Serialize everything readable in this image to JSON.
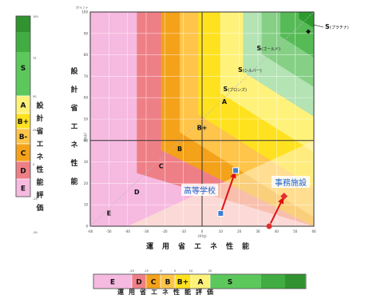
{
  "left_scale": {
    "title": "設計省エネ性能評価",
    "tick_labels": [
      "100",
      "75",
      "50",
      "25",
      "0",
      "-25",
      "-50"
    ],
    "bands": [
      {
        "label": "S",
        "color": "#5cc85c"
      },
      {
        "label": "A",
        "color": "#fff27a"
      },
      {
        "label": "B+",
        "color": "#ffe21f"
      },
      {
        "label": "B-",
        "color": "#ffc44a"
      },
      {
        "label": "C",
        "color": "#f4a21a"
      },
      {
        "label": "D",
        "color": "#ef7f86"
      },
      {
        "label": "E",
        "color": "#f6b9e0"
      }
    ]
  },
  "bottom_scale": {
    "title": "運用省エネ性能評価",
    "tick_labels": [
      "-25",
      "-15",
      "-5",
      "0",
      "10",
      "20"
    ],
    "bands": [
      {
        "label": "E",
        "color": "#f6b9e0"
      },
      {
        "label": "D",
        "color": "#ef7f86"
      },
      {
        "label": "C",
        "color": "#f4a21a"
      },
      {
        "label": "B",
        "color": "#ffc44a"
      },
      {
        "label": "B+",
        "color": "#ffe21f"
      },
      {
        "label": "A",
        "color": "#fff27a"
      },
      {
        "label": "S",
        "color": "#5cc85c"
      }
    ]
  },
  "chart_data": {
    "type": "scatter",
    "title": "",
    "xlabel": "運用省エネ性能",
    "ylabel": "設計省エネ性能",
    "x_unit": "(平均)",
    "y_unit": "(平均)",
    "y_top_unit": "ポイント",
    "xlim": [
      -60,
      60
    ],
    "ylim": [
      0,
      100
    ],
    "x_ticks": [
      -60,
      -50,
      -40,
      -30,
      -20,
      -10,
      0,
      10,
      20,
      30,
      40,
      50,
      60
    ],
    "y_ticks": [
      0,
      10,
      20,
      30,
      40,
      50,
      60,
      70,
      80,
      90,
      100
    ],
    "grid": true,
    "zones": [
      {
        "label": "S(プラチナ)",
        "x": 60,
        "y": 100,
        "color": "#2f9a2f"
      },
      {
        "label": "S(ゴールド)",
        "x": 42,
        "y": 82,
        "color": "#56bb56"
      },
      {
        "label": "S(シルバー)",
        "x": 32,
        "y": 72,
        "color": "#86d086"
      },
      {
        "label": "S(ブロンズ)",
        "x": 24,
        "y": 63,
        "color": "#b4e3b4"
      },
      {
        "label": "A",
        "x": 12,
        "y": 57,
        "color": "#fff27a"
      },
      {
        "label": "B+",
        "x": 0,
        "y": 45,
        "color": "#ffe21f"
      },
      {
        "label": "B",
        "x": -12,
        "y": 35,
        "color": "#ffc44a"
      },
      {
        "label": "C",
        "x": -22,
        "y": 27,
        "color": "#f4a21a"
      },
      {
        "label": "D",
        "x": -35,
        "y": 15,
        "color": "#ef7f86"
      },
      {
        "label": "E",
        "x": -50,
        "y": 5,
        "color": "#f6b9e0"
      }
    ],
    "points": [
      {
        "label": "高等学校",
        "x": 18,
        "y": 26,
        "color": "#3a7fd5",
        "marker": "square"
      },
      {
        "label": "高等学校",
        "x": 10,
        "y": 6,
        "color": "#3a7fd5",
        "marker": "square"
      },
      {
        "label": "事務施設",
        "x": 44,
        "y": 14,
        "color": "#e03030",
        "marker": "diamond"
      },
      {
        "label": "事務施設",
        "x": 36,
        "y": 0,
        "color": "#e03030",
        "marker": "circle"
      }
    ],
    "labels": {
      "school": "高等学校",
      "office": "事務施設"
    }
  }
}
